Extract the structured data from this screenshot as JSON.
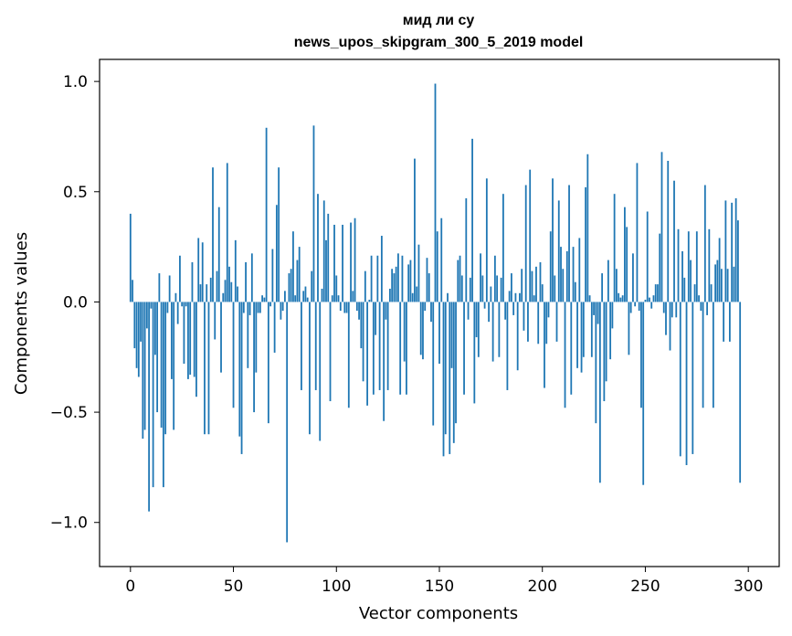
{
  "chart_data": {
    "type": "bar",
    "title": "мид ли су",
    "subtitle": "news_upos_skipgram_300_5_2019 model",
    "xlabel": "Vector components",
    "ylabel": "Components values",
    "xlim": [
      -15,
      315
    ],
    "ylim": [
      -1.2,
      1.1
    ],
    "xticks": [
      0,
      50,
      100,
      150,
      200,
      250,
      300
    ],
    "xtick_labels": [
      "0",
      "50",
      "100",
      "150",
      "200",
      "250",
      "300"
    ],
    "yticks": [
      -1.0,
      -0.5,
      0.0,
      0.5,
      1.0
    ],
    "ytick_labels": [
      "−1.0",
      "−0.5",
      "0.0",
      "0.5",
      "1.0"
    ],
    "grid": false,
    "bar_color": "#1f77b4",
    "values": [
      0.4,
      0.1,
      -0.21,
      -0.3,
      -0.34,
      -0.18,
      -0.62,
      -0.58,
      -0.12,
      -0.95,
      -0.03,
      -0.84,
      -0.24,
      -0.5,
      0.13,
      -0.57,
      -0.84,
      -0.6,
      -0.05,
      0.12,
      -0.35,
      -0.58,
      0.04,
      -0.1,
      0.21,
      -0.02,
      -0.28,
      -0.02,
      -0.35,
      -0.33,
      0.18,
      -0.34,
      -0.43,
      0.29,
      0.08,
      0.27,
      -0.6,
      0.08,
      -0.6,
      0.11,
      0.61,
      -0.17,
      0.14,
      0.43,
      -0.32,
      0.04,
      0.1,
      0.63,
      0.16,
      0.09,
      -0.48,
      0.28,
      0.07,
      -0.61,
      -0.69,
      -0.05,
      0.18,
      -0.3,
      -0.06,
      0.22,
      -0.5,
      -0.32,
      -0.05,
      -0.05,
      0.03,
      0.02,
      0.79,
      -0.55,
      -0.02,
      0.24,
      -0.23,
      0.44,
      0.61,
      -0.08,
      -0.04,
      0.05,
      -1.09,
      0.13,
      0.15,
      0.32,
      0.03,
      0.19,
      0.25,
      -0.4,
      0.05,
      0.07,
      0.02,
      -0.6,
      0.14,
      0.8,
      -0.4,
      0.49,
      -0.63,
      0.06,
      0.46,
      0.28,
      0.4,
      -0.45,
      0.03,
      0.35,
      0.12,
      0.03,
      -0.04,
      0.35,
      -0.05,
      -0.05,
      -0.48,
      0.36,
      0.05,
      0.38,
      -0.04,
      -0.08,
      -0.21,
      -0.36,
      0.14,
      -0.47,
      0.01,
      0.21,
      -0.42,
      -0.15,
      0.21,
      -0.4,
      0.3,
      -0.54,
      -0.08,
      -0.4,
      0.06,
      0.15,
      0.13,
      0.16,
      0.22,
      -0.42,
      0.21,
      -0.27,
      -0.42,
      0.17,
      0.19,
      0.04,
      0.65,
      0.07,
      0.26,
      -0.24,
      -0.26,
      -0.04,
      0.2,
      0.13,
      -0.09,
      -0.56,
      0.99,
      0.32,
      -0.28,
      0.38,
      -0.7,
      -0.6,
      0.04,
      -0.69,
      -0.3,
      -0.64,
      -0.55,
      0.19,
      0.21,
      0.12,
      -0.42,
      0.47,
      -0.08,
      0.11,
      0.74,
      -0.46,
      -0.16,
      -0.25,
      0.22,
      0.12,
      -0.03,
      0.56,
      -0.09,
      0.07,
      -0.27,
      0.21,
      0.12,
      -0.25,
      0.11,
      0.49,
      -0.08,
      -0.4,
      0.05,
      0.13,
      -0.06,
      0.04,
      -0.31,
      0.04,
      0.15,
      -0.13,
      0.53,
      -0.18,
      0.6,
      0.14,
      0.03,
      0.16,
      -0.19,
      0.18,
      0.08,
      -0.39,
      -0.19,
      -0.07,
      0.32,
      0.56,
      0.12,
      -0.18,
      0.46,
      0.25,
      0.15,
      -0.48,
      0.23,
      0.53,
      -0.42,
      0.25,
      0.09,
      -0.3,
      0.29,
      -0.32,
      -0.25,
      0.52,
      0.67,
      0.03,
      -0.25,
      -0.06,
      -0.55,
      -0.1,
      -0.82,
      0.13,
      -0.45,
      -0.36,
      0.19,
      -0.26,
      -0.12,
      0.49,
      0.15,
      0.04,
      0.02,
      0.03,
      0.43,
      0.34,
      -0.24,
      -0.05,
      0.22,
      -0.02,
      0.63,
      -0.04,
      -0.48,
      -0.83,
      0.01,
      0.41,
      0.02,
      -0.03,
      0.03,
      0.08,
      0.08,
      0.31,
      0.68,
      -0.05,
      -0.15,
      0.64,
      -0.22,
      -0.07,
      0.55,
      -0.07,
      0.33,
      -0.7,
      0.23,
      0.11,
      -0.74,
      0.32,
      0.19,
      -0.69,
      0.08,
      0.32,
      0.03,
      -0.04,
      -0.48,
      0.53,
      -0.06,
      0.33,
      0.08,
      -0.48,
      0.17,
      0.19,
      0.29,
      0.15,
      -0.18,
      0.46,
      0.15,
      -0.18,
      0.45,
      0.16,
      0.47,
      0.37,
      -0.82
    ]
  }
}
